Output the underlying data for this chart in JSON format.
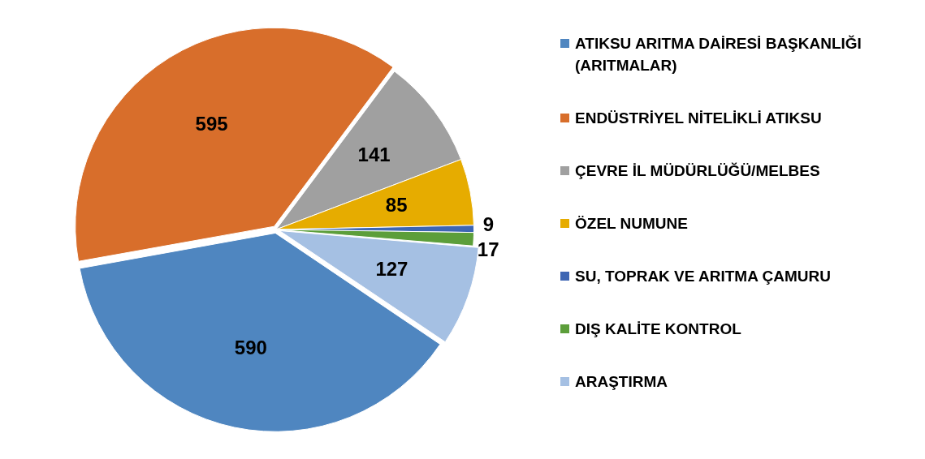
{
  "chart_data": {
    "type": "pie",
    "categories": [
      "ATIKSU ARITMA DAİRESİ BAŞKANLIĞI (ARITMALAR)",
      "ENDÜSTRİYEL NİTELİKLİ ATIKSU",
      "ÇEVRE İL MÜDÜRLÜĞÜ/MELBES",
      "ÖZEL NUMUNE",
      "SU, TOPRAK VE ARITMA ÇAMURU",
      "DIŞ KALİTE KONTROL",
      "ARAŞTIRMA"
    ],
    "values": [
      590,
      595,
      141,
      85,
      9,
      17,
      127
    ],
    "colors": [
      "#4f86c0",
      "#d86e2b",
      "#a0a0a0",
      "#e6ac00",
      "#3e66b3",
      "#5c9e3a",
      "#a5c0e3"
    ],
    "data_labels": true,
    "legend": "right"
  }
}
